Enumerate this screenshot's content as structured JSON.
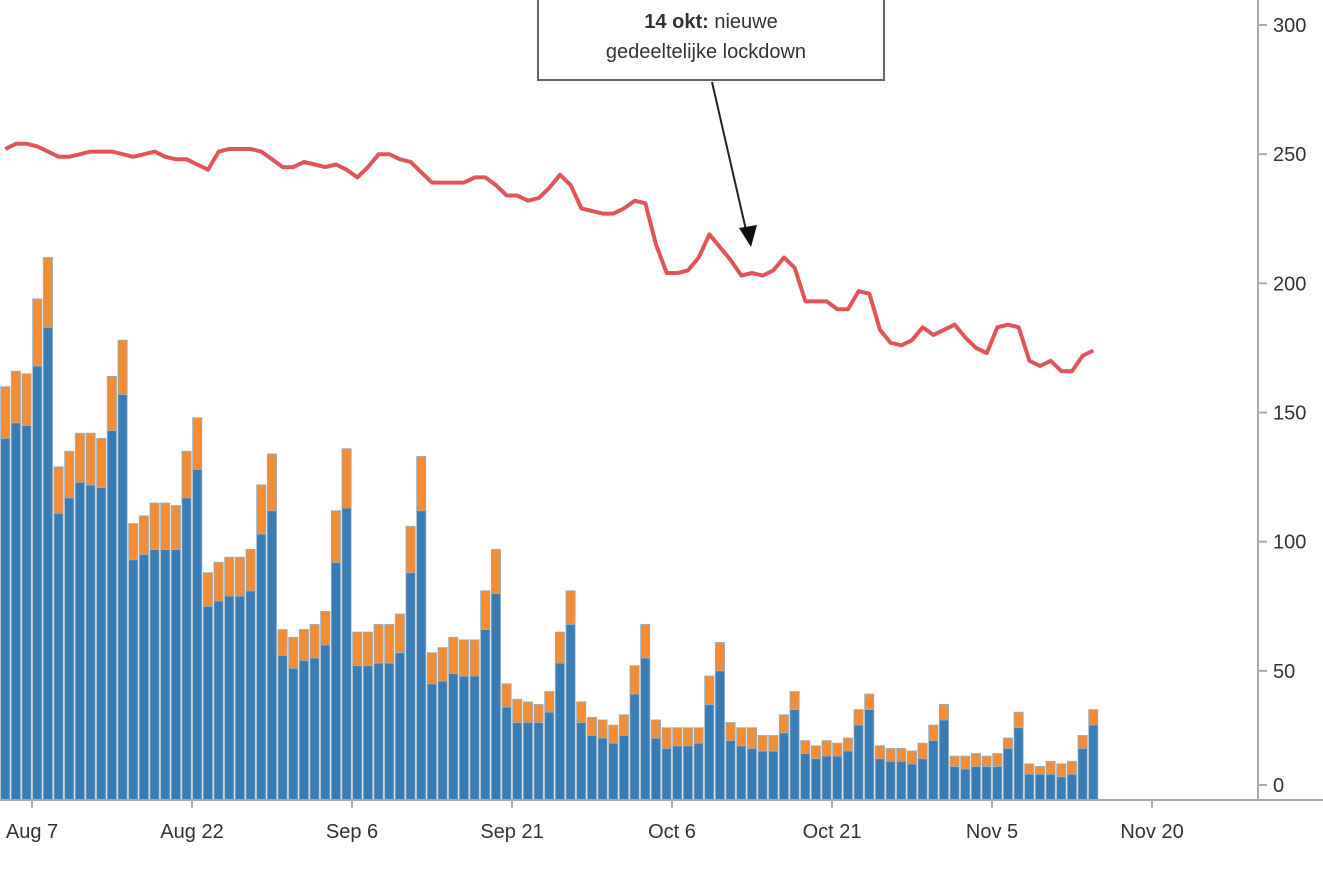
{
  "chart_data": {
    "type": "bar",
    "stacked": true,
    "title": "",
    "xlabel": "",
    "ylabel": "",
    "ylim": [
      0,
      300
    ],
    "grid": false,
    "y_axis_side": "right",
    "y_ticks": [
      "0",
      "50",
      "100",
      "150",
      "200",
      "250",
      "300"
    ],
    "x_ticks": [
      {
        "label": "Aug 7",
        "date": "Aug 7"
      },
      {
        "label": "Aug 22",
        "date": "Aug 22"
      },
      {
        "label": "Sep 6",
        "date": "Sep 6"
      },
      {
        "label": "Sep 21",
        "date": "Sep 21"
      },
      {
        "label": "Oct 6",
        "date": "Oct 6"
      },
      {
        "label": "Oct 21",
        "date": "Oct 21"
      },
      {
        "label": "Nov 5",
        "date": "Nov 5"
      },
      {
        "label": "Nov 20",
        "date": "Nov 20"
      }
    ],
    "dates": [
      "Aug 4",
      "Aug 5",
      "Aug 6",
      "Aug 7",
      "Aug 8",
      "Aug 9",
      "Aug 10",
      "Aug 11",
      "Aug 12",
      "Aug 13",
      "Aug 14",
      "Aug 15",
      "Aug 16",
      "Aug 17",
      "Aug 18",
      "Aug 19",
      "Aug 20",
      "Aug 21",
      "Aug 22",
      "Aug 23",
      "Aug 24",
      "Aug 25",
      "Aug 26",
      "Aug 27",
      "Aug 28",
      "Aug 29",
      "Aug 30",
      "Aug 31",
      "Sep 1",
      "Sep 2",
      "Sep 3",
      "Sep 4",
      "Sep 5",
      "Sep 6",
      "Sep 7",
      "Sep 8",
      "Sep 9",
      "Sep 10",
      "Sep 11",
      "Sep 12",
      "Sep 13",
      "Sep 14",
      "Sep 15",
      "Sep 16",
      "Sep 17",
      "Sep 18",
      "Sep 19",
      "Sep 20",
      "Sep 21",
      "Sep 22",
      "Sep 23",
      "Sep 24",
      "Sep 25",
      "Sep 26",
      "Sep 27",
      "Sep 28",
      "Sep 29",
      "Sep 30",
      "Oct 1",
      "Oct 2",
      "Oct 3",
      "Oct 4",
      "Oct 5",
      "Oct 6",
      "Oct 7",
      "Oct 8",
      "Oct 9",
      "Oct 10",
      "Oct 11",
      "Oct 12",
      "Oct 13",
      "Oct 14",
      "Oct 15",
      "Oct 16",
      "Oct 17",
      "Oct 18",
      "Oct 19",
      "Oct 20",
      "Oct 21",
      "Oct 22",
      "Oct 23",
      "Oct 24",
      "Oct 25",
      "Oct 26",
      "Oct 27",
      "Oct 28",
      "Oct 29",
      "Oct 30",
      "Oct 31",
      "Nov 1",
      "Nov 2",
      "Nov 3",
      "Nov 4",
      "Nov 5",
      "Nov 6",
      "Nov 7",
      "Nov 8",
      "Nov 9",
      "Nov 10",
      "Nov 11",
      "Nov 12",
      "Nov 13",
      "Nov 14"
    ],
    "series": [
      {
        "kind": "bar",
        "color": "#3a7db6",
        "values": [
          140,
          146,
          145,
          168,
          183,
          111,
          117,
          123,
          122,
          121,
          143,
          157,
          93,
          95,
          97,
          97,
          97,
          117,
          128,
          75,
          77,
          79,
          79,
          81,
          103,
          112,
          56,
          51,
          54,
          55,
          60,
          92,
          113,
          52,
          52,
          53,
          53,
          57,
          88,
          112,
          45,
          46,
          49,
          48,
          48,
          66,
          80,
          36,
          30,
          30,
          30,
          34,
          53,
          68,
          30,
          25,
          24,
          22,
          25,
          41,
          55,
          24,
          20,
          21,
          21,
          22,
          37,
          50,
          23,
          21,
          20,
          19,
          19,
          26,
          35,
          18,
          16,
          17,
          17,
          19,
          29,
          35,
          16,
          15,
          15,
          14,
          16,
          23,
          31,
          13,
          12,
          13,
          13,
          13,
          20,
          28,
          10,
          10,
          10,
          9,
          10,
          20,
          29
        ]
      },
      {
        "kind": "bar",
        "color": "#ef8d38",
        "values": [
          20,
          20,
          20,
          26,
          27,
          18,
          18,
          19,
          20,
          19,
          21,
          21,
          14,
          15,
          18,
          18,
          17,
          18,
          20,
          13,
          15,
          15,
          15,
          16,
          19,
          22,
          10,
          12,
          12,
          13,
          13,
          20,
          23,
          13,
          13,
          15,
          15,
          15,
          18,
          21,
          12,
          13,
          14,
          14,
          14,
          15,
          17,
          9,
          9,
          8,
          7,
          8,
          12,
          13,
          8,
          7,
          7,
          7,
          8,
          11,
          13,
          7,
          8,
          7,
          7,
          6,
          11,
          11,
          7,
          7,
          8,
          6,
          6,
          7,
          7,
          5,
          5,
          6,
          5,
          5,
          6,
          6,
          5,
          5,
          5,
          5,
          6,
          6,
          6,
          4,
          5,
          5,
          4,
          5,
          4,
          6,
          4,
          3,
          5,
          5,
          5,
          5,
          6
        ]
      },
      {
        "kind": "line",
        "color": "#e05558",
        "values": [
          252,
          254,
          254,
          253,
          251,
          249,
          249,
          250,
          251,
          251,
          251,
          250,
          249,
          250,
          251,
          249,
          248,
          248,
          246,
          244,
          251,
          252,
          252,
          252,
          251,
          248,
          245,
          245,
          247,
          246,
          245,
          246,
          244,
          241,
          245,
          250,
          250,
          248,
          247,
          243,
          239,
          239,
          239,
          239,
          241,
          241,
          238,
          234,
          234,
          232,
          233,
          237,
          242,
          238,
          229,
          228,
          227,
          227,
          229,
          232,
          231,
          215,
          204,
          204,
          205,
          210,
          219,
          214,
          209,
          203,
          204,
          203,
          205,
          210,
          206,
          193,
          193,
          193,
          190,
          190,
          197,
          196,
          182,
          177,
          176,
          178,
          183,
          180,
          182,
          184,
          179,
          175,
          173,
          183,
          184,
          183,
          170,
          168,
          170,
          166,
          166,
          172,
          174
        ]
      }
    ],
    "annotation": {
      "bold": "14 okt:",
      "line1_rest": " nieuwe",
      "line2": "gedeeltelijke lockdown",
      "target_date": "Oct 14"
    }
  }
}
